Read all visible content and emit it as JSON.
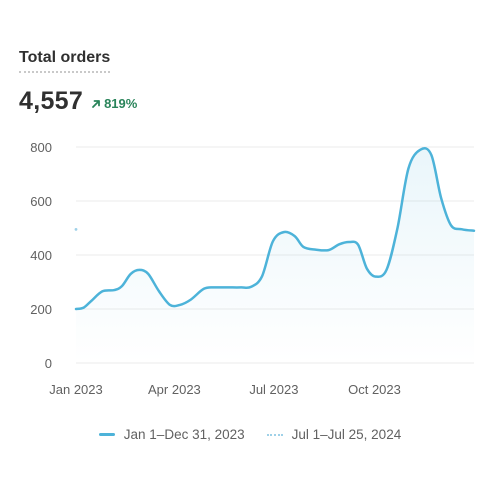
{
  "card": {
    "title": "Total orders",
    "metric_value": "4,557",
    "metric_change": "819%",
    "change_icon": "arrow-up-right-icon",
    "positive_color": "#29845a"
  },
  "chart_data": {
    "type": "line",
    "y_ticks": [
      "800",
      "600",
      "400",
      "200",
      "0"
    ],
    "x_ticks": [
      "Jan 2023",
      "Apr 2023",
      "Jul 2023",
      "Oct 2023"
    ],
    "ylim": [
      0,
      800
    ],
    "grid": true,
    "legend_position": "bottom",
    "series": [
      {
        "name": "Jan 1–Dec 31, 2023",
        "color": "#4db3d9",
        "style": "solid",
        "x": [
          "2023-01-01",
          "2023-01-08",
          "2023-01-15",
          "2023-01-25",
          "2023-02-05",
          "2023-02-12",
          "2023-02-20",
          "2023-02-28",
          "2023-03-08",
          "2023-03-18",
          "2023-03-28",
          "2023-04-06",
          "2023-04-16",
          "2023-04-28",
          "2023-05-08",
          "2023-05-20",
          "2023-06-01",
          "2023-06-10",
          "2023-06-20",
          "2023-06-30",
          "2023-07-10",
          "2023-07-20",
          "2023-07-28",
          "2023-08-08",
          "2023-08-20",
          "2023-08-30",
          "2023-09-08",
          "2023-09-16",
          "2023-09-24",
          "2023-10-02",
          "2023-10-12",
          "2023-10-22",
          "2023-11-01",
          "2023-11-12",
          "2023-11-22",
          "2023-12-01",
          "2023-12-10",
          "2023-12-20",
          "2023-12-31"
        ],
        "values": [
          200,
          205,
          230,
          265,
          270,
          285,
          330,
          345,
          330,
          265,
          215,
          215,
          235,
          275,
          280,
          280,
          280,
          282,
          320,
          450,
          485,
          470,
          430,
          420,
          418,
          440,
          448,
          438,
          350,
          320,
          345,
          500,
          720,
          790,
          770,
          610,
          510,
          495,
          490
        ]
      },
      {
        "name": "Jul 1–Jul 25, 2024",
        "color": "#9fd1e8",
        "style": "dotted",
        "x": [
          "2023-01-01"
        ],
        "values": [
          495
        ]
      }
    ]
  }
}
